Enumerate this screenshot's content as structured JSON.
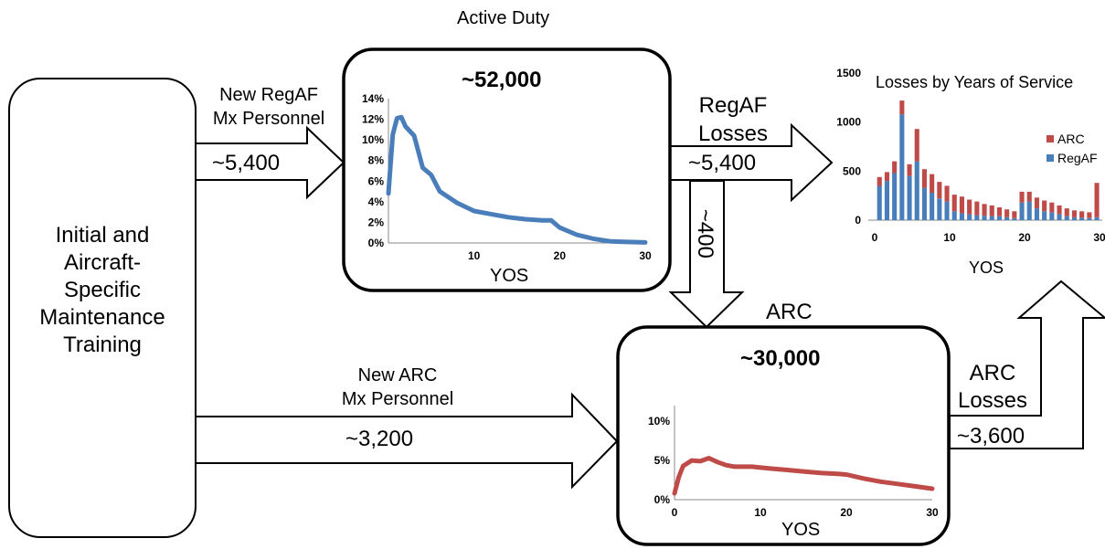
{
  "training_box": {
    "lines": [
      "Initial and",
      "Aircraft-",
      "Specific",
      "Maintenance",
      "Training"
    ]
  },
  "active_duty": {
    "section_label": "Active Duty",
    "total": "~52,000",
    "inflow_label": [
      "New RegAF",
      "Mx Personnel"
    ],
    "inflow_value": "~5,400",
    "loss_label": [
      "RegAF",
      "Losses"
    ],
    "loss_value": "~5,400",
    "transfer_value": "~400"
  },
  "arc": {
    "section_label": "ARC",
    "total": "~30,000",
    "inflow_label": [
      "New ARC",
      "Mx Personnel"
    ],
    "inflow_value": "~3,200",
    "loss_label": [
      "ARC",
      "Losses"
    ],
    "loss_value": "~3,600"
  },
  "colors": {
    "regaf": "#4a7ebb",
    "arc": "#be4b48"
  },
  "chart_data": [
    {
      "type": "line",
      "id": "active-duty-distribution",
      "xlabel": "YOS",
      "x_ticks": [
        10,
        20,
        30
      ],
      "y_ticks": [
        "0%",
        "2%",
        "4%",
        "6%",
        "8%",
        "10%",
        "12%",
        "14%"
      ],
      "xlim": [
        0,
        30
      ],
      "ylim": [
        0,
        14
      ],
      "series": [
        {
          "color": "#4a7ebb",
          "x": [
            0,
            0.5,
            1,
            1.5,
            2,
            3,
            4,
            5,
            6,
            8,
            10,
            12,
            14,
            16,
            18,
            19,
            20,
            22,
            24,
            26,
            28,
            30
          ],
          "y": [
            4.8,
            10.5,
            12.1,
            12.2,
            11.3,
            10.4,
            7.3,
            6.6,
            5.0,
            3.9,
            3.1,
            2.8,
            2.5,
            2.3,
            2.2,
            2.2,
            1.5,
            0.8,
            0.4,
            0.15,
            0.1,
            0.05
          ]
        }
      ]
    },
    {
      "type": "line",
      "id": "arc-distribution",
      "xlabel": "YOS",
      "x_ticks": [
        0,
        10,
        20,
        30
      ],
      "y_ticks": [
        "0%",
        "5%",
        "10%"
      ],
      "xlim": [
        0,
        30
      ],
      "ylim": [
        0,
        12
      ],
      "series": [
        {
          "color": "#be4b48",
          "x": [
            0,
            0.5,
            1,
            2,
            3,
            4,
            5,
            6,
            7,
            9,
            11,
            13,
            15,
            17,
            19,
            20,
            22,
            24,
            26,
            28,
            30
          ],
          "y": [
            0.8,
            2.9,
            4.3,
            5.0,
            4.9,
            5.3,
            4.8,
            4.4,
            4.2,
            4.2,
            4.0,
            3.8,
            3.6,
            3.4,
            3.3,
            3.2,
            2.7,
            2.3,
            2.0,
            1.7,
            1.4
          ]
        }
      ]
    },
    {
      "type": "bar",
      "id": "losses-by-yos",
      "stacked": true,
      "title": "Losses by Years of Service",
      "xlabel": "YOS",
      "x_ticks": [
        0,
        10,
        20,
        30
      ],
      "y_ticks": [
        0,
        500,
        1000,
        1500
      ],
      "xlim": [
        0,
        30
      ],
      "ylim": [
        0,
        1500
      ],
      "legend_position": "right",
      "categories": [
        1,
        2,
        3,
        4,
        5,
        6,
        7,
        8,
        9,
        10,
        11,
        12,
        13,
        14,
        15,
        16,
        17,
        18,
        19,
        20,
        21,
        22,
        23,
        24,
        25,
        26,
        27,
        28,
        29,
        30
      ],
      "series": [
        {
          "name": "RegAF",
          "color": "#4a7ebb",
          "values": [
            350,
            400,
            480,
            1080,
            450,
            600,
            330,
            280,
            220,
            190,
            90,
            70,
            60,
            50,
            45,
            40,
            40,
            30,
            20,
            180,
            190,
            120,
            90,
            80,
            60,
            40,
            30,
            25,
            20,
            30
          ]
        },
        {
          "name": "ARC",
          "color": "#be4b48",
          "values": [
            90,
            90,
            120,
            140,
            120,
            330,
            190,
            190,
            170,
            160,
            170,
            170,
            150,
            140,
            120,
            110,
            90,
            80,
            70,
            110,
            100,
            110,
            110,
            100,
            90,
            80,
            70,
            65,
            60,
            350
          ]
        }
      ]
    }
  ]
}
